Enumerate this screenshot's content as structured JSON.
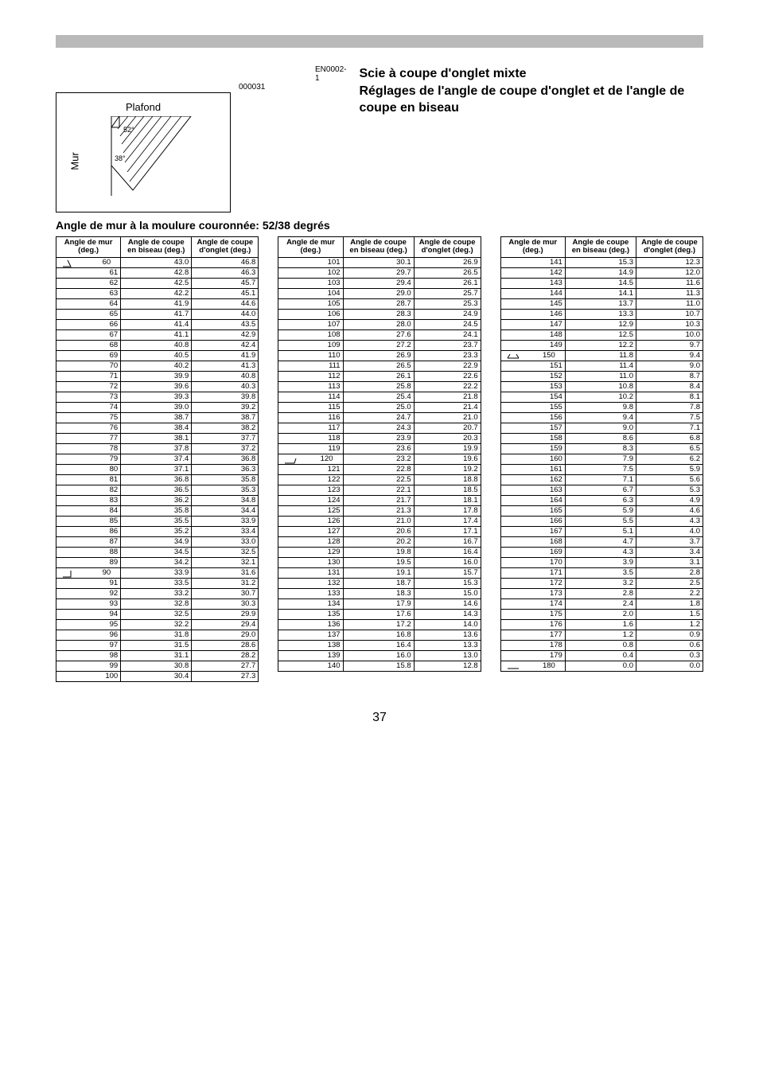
{
  "page_number": "37",
  "figure_number": "000031",
  "diagram": {
    "top_label": "Plafond",
    "side_label": "Mur",
    "angle_top": "52°",
    "angle_side": "38°"
  },
  "en_code": "EN0002-1",
  "title_lines": [
    "Scie à coupe d'onglet mixte",
    "Réglages de l'angle de coupe d'onglet et de l'angle de coupe en biseau"
  ],
  "section_title": "Angle de mur à la moulure couronnée: 52/38 degrés",
  "headers": {
    "h1a": "Angle de mur",
    "h1b": "(deg.)",
    "h2a": "Angle de coupe",
    "h2b": "en biseau (deg.)",
    "h3a": "Angle de coupe",
    "h3b": "d'onglet (deg.)"
  },
  "icon_rows": {
    "60": 1,
    "90": 2,
    "120": 3,
    "150": 4,
    "180": 5
  },
  "tables": [
    [
      [
        "60",
        "43.0",
        "46.8"
      ],
      [
        "61",
        "42.8",
        "46.3"
      ],
      [
        "62",
        "42.5",
        "45.7"
      ],
      [
        "63",
        "42.2",
        "45.1"
      ],
      [
        "64",
        "41.9",
        "44.6"
      ],
      [
        "65",
        "41.7",
        "44.0"
      ],
      [
        "66",
        "41.4",
        "43.5"
      ],
      [
        "67",
        "41.1",
        "42.9"
      ],
      [
        "68",
        "40.8",
        "42.4"
      ],
      [
        "69",
        "40.5",
        "41.9"
      ],
      [
        "70",
        "40.2",
        "41.3"
      ],
      [
        "71",
        "39.9",
        "40.8"
      ],
      [
        "72",
        "39.6",
        "40.3"
      ],
      [
        "73",
        "39.3",
        "39.8"
      ],
      [
        "74",
        "39.0",
        "39.2"
      ],
      [
        "75",
        "38.7",
        "38.7"
      ],
      [
        "76",
        "38.4",
        "38.2"
      ],
      [
        "77",
        "38.1",
        "37.7"
      ],
      [
        "78",
        "37.8",
        "37.2"
      ],
      [
        "79",
        "37.4",
        "36.8"
      ],
      [
        "80",
        "37.1",
        "36.3"
      ],
      [
        "81",
        "36.8",
        "35.8"
      ],
      [
        "82",
        "36.5",
        "35.3"
      ],
      [
        "83",
        "36.2",
        "34.8"
      ],
      [
        "84",
        "35.8",
        "34.4"
      ],
      [
        "85",
        "35.5",
        "33.9"
      ],
      [
        "86",
        "35.2",
        "33.4"
      ],
      [
        "87",
        "34.9",
        "33.0"
      ],
      [
        "88",
        "34.5",
        "32.5"
      ],
      [
        "89",
        "34.2",
        "32.1"
      ],
      [
        "90",
        "33.9",
        "31.6"
      ],
      [
        "91",
        "33.5",
        "31.2"
      ],
      [
        "92",
        "33.2",
        "30.7"
      ],
      [
        "93",
        "32.8",
        "30.3"
      ],
      [
        "94",
        "32.5",
        "29.9"
      ],
      [
        "95",
        "32.2",
        "29.4"
      ],
      [
        "96",
        "31.8",
        "29.0"
      ],
      [
        "97",
        "31.5",
        "28.6"
      ],
      [
        "98",
        "31.1",
        "28.2"
      ],
      [
        "99",
        "30.8",
        "27.7"
      ],
      [
        "100",
        "30.4",
        "27.3"
      ]
    ],
    [
      [
        "101",
        "30.1",
        "26.9"
      ],
      [
        "102",
        "29.7",
        "26.5"
      ],
      [
        "103",
        "29.4",
        "26.1"
      ],
      [
        "104",
        "29.0",
        "25.7"
      ],
      [
        "105",
        "28.7",
        "25.3"
      ],
      [
        "106",
        "28.3",
        "24.9"
      ],
      [
        "107",
        "28.0",
        "24.5"
      ],
      [
        "108",
        "27.6",
        "24.1"
      ],
      [
        "109",
        "27.2",
        "23.7"
      ],
      [
        "110",
        "26.9",
        "23.3"
      ],
      [
        "111",
        "26.5",
        "22.9"
      ],
      [
        "112",
        "26.1",
        "22.6"
      ],
      [
        "113",
        "25.8",
        "22.2"
      ],
      [
        "114",
        "25.4",
        "21.8"
      ],
      [
        "115",
        "25.0",
        "21.4"
      ],
      [
        "116",
        "24.7",
        "21.0"
      ],
      [
        "117",
        "24.3",
        "20.7"
      ],
      [
        "118",
        "23.9",
        "20.3"
      ],
      [
        "119",
        "23.6",
        "19.9"
      ],
      [
        "120",
        "23.2",
        "19.6"
      ],
      [
        "121",
        "22.8",
        "19.2"
      ],
      [
        "122",
        "22.5",
        "18.8"
      ],
      [
        "123",
        "22.1",
        "18.5"
      ],
      [
        "124",
        "21.7",
        "18.1"
      ],
      [
        "125",
        "21.3",
        "17.8"
      ],
      [
        "126",
        "21.0",
        "17.4"
      ],
      [
        "127",
        "20.6",
        "17.1"
      ],
      [
        "128",
        "20.2",
        "16.7"
      ],
      [
        "129",
        "19.8",
        "16.4"
      ],
      [
        "130",
        "19.5",
        "16.0"
      ],
      [
        "131",
        "19.1",
        "15.7"
      ],
      [
        "132",
        "18.7",
        "15.3"
      ],
      [
        "133",
        "18.3",
        "15.0"
      ],
      [
        "134",
        "17.9",
        "14.6"
      ],
      [
        "135",
        "17.6",
        "14.3"
      ],
      [
        "136",
        "17.2",
        "14.0"
      ],
      [
        "137",
        "16.8",
        "13.6"
      ],
      [
        "138",
        "16.4",
        "13.3"
      ],
      [
        "139",
        "16.0",
        "13.0"
      ],
      [
        "140",
        "15.8",
        "12.8"
      ]
    ],
    [
      [
        "141",
        "15.3",
        "12.3"
      ],
      [
        "142",
        "14.9",
        "12.0"
      ],
      [
        "143",
        "14.5",
        "11.6"
      ],
      [
        "144",
        "14.1",
        "11.3"
      ],
      [
        "145",
        "13.7",
        "11.0"
      ],
      [
        "146",
        "13.3",
        "10.7"
      ],
      [
        "147",
        "12.9",
        "10.3"
      ],
      [
        "148",
        "12.5",
        "10.0"
      ],
      [
        "149",
        "12.2",
        "9.7"
      ],
      [
        "150",
        "11.8",
        "9.4"
      ],
      [
        "151",
        "11.4",
        "9.0"
      ],
      [
        "152",
        "11.0",
        "8.7"
      ],
      [
        "153",
        "10.8",
        "8.4"
      ],
      [
        "154",
        "10.2",
        "8.1"
      ],
      [
        "155",
        "9.8",
        "7.8"
      ],
      [
        "156",
        "9.4",
        "7.5"
      ],
      [
        "157",
        "9.0",
        "7.1"
      ],
      [
        "158",
        "8.6",
        "6.8"
      ],
      [
        "159",
        "8.3",
        "6.5"
      ],
      [
        "160",
        "7.9",
        "6.2"
      ],
      [
        "161",
        "7.5",
        "5.9"
      ],
      [
        "162",
        "7.1",
        "5.6"
      ],
      [
        "163",
        "6.7",
        "5.3"
      ],
      [
        "164",
        "6.3",
        "4.9"
      ],
      [
        "165",
        "5.9",
        "4.6"
      ],
      [
        "166",
        "5.5",
        "4.3"
      ],
      [
        "167",
        "5.1",
        "4.0"
      ],
      [
        "168",
        "4.7",
        "3.7"
      ],
      [
        "169",
        "4.3",
        "3.4"
      ],
      [
        "170",
        "3.9",
        "3.1"
      ],
      [
        "171",
        "3.5",
        "2.8"
      ],
      [
        "172",
        "3.2",
        "2.5"
      ],
      [
        "173",
        "2.8",
        "2.2"
      ],
      [
        "174",
        "2.4",
        "1.8"
      ],
      [
        "175",
        "2.0",
        "1.5"
      ],
      [
        "176",
        "1.6",
        "1.2"
      ],
      [
        "177",
        "1.2",
        "0.9"
      ],
      [
        "178",
        "0.8",
        "0.6"
      ],
      [
        "179",
        "0.4",
        "0.3"
      ],
      [
        "180",
        "0.0",
        "0.0"
      ]
    ]
  ]
}
